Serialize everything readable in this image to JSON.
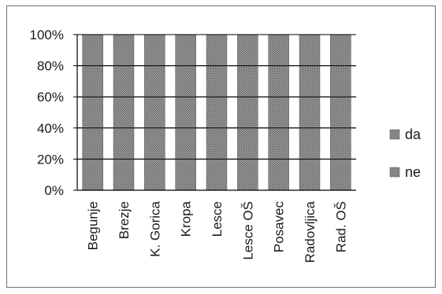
{
  "chart_data": {
    "type": "bar",
    "stacked": true,
    "percent": true,
    "categories": [
      "Begunje",
      "Brezje",
      "K. Gorica",
      "Kropa",
      "Lesce",
      "Lesce OŠ",
      "Posavec",
      "Radovljica",
      "Rad. OŠ"
    ],
    "series": [
      {
        "name": "da",
        "values": [
          100,
          100,
          100,
          100,
          100,
          100,
          100,
          100,
          100
        ],
        "color": "#8c8c8c"
      },
      {
        "name": "ne",
        "values": [
          0,
          0,
          0,
          0,
          0,
          0,
          0,
          0,
          0
        ],
        "color": "#7a7a7a"
      }
    ],
    "y_ticks": [
      "0%",
      "20%",
      "40%",
      "60%",
      "80%",
      "100%"
    ],
    "ylim": [
      0,
      100
    ],
    "grid": true,
    "legend_position": "right"
  }
}
